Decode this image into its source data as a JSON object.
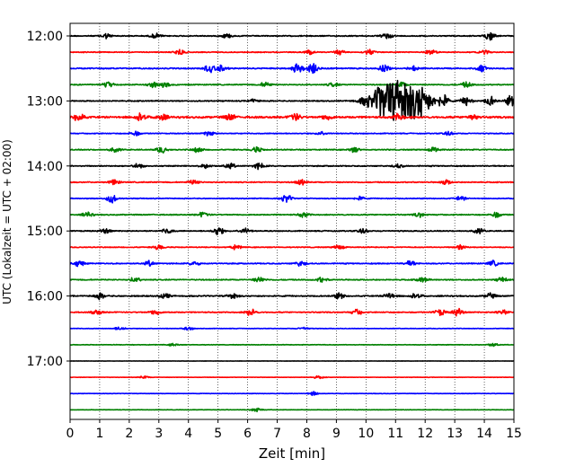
{
  "chart_data": {
    "type": "line",
    "title": "",
    "xlabel": "Zeit  [min]",
    "ylabel": "UTC (Lokalzeit = UTC + 02:00)",
    "xlim": [
      0,
      15
    ],
    "x_ticks": [
      0,
      1,
      2,
      3,
      4,
      5,
      6,
      7,
      8,
      9,
      10,
      11,
      12,
      13,
      14,
      15
    ],
    "x_tick_labels": [
      "0",
      "1",
      "2",
      "3",
      "4",
      "5",
      "6",
      "7",
      "8",
      "9",
      "10",
      "11",
      "12",
      "13",
      "14",
      "15"
    ],
    "y_ticks": [
      "12:00",
      "13:00",
      "14:00",
      "15:00",
      "16:00",
      "17:00"
    ],
    "y_tick_positions_hours": [
      12.0,
      13.0,
      14.0,
      15.0,
      16.0,
      17.0
    ],
    "x_grid": "vertical dotted lines at each minute",
    "trace_minutes": 15,
    "trace_colors": [
      "#000000",
      "#ff0000",
      "#0000ff",
      "#008000"
    ],
    "series": [
      {
        "start": "12:00",
        "amp": 0.6,
        "bursts": [
          [
            1.2,
            1.0
          ],
          [
            2.9,
            0.9
          ],
          [
            5.3,
            0.8
          ],
          [
            10.7,
            1.1
          ],
          [
            14.2,
            1.6
          ]
        ]
      },
      {
        "start": "12:15",
        "amp": 0.5,
        "bursts": [
          [
            3.7,
            1.2
          ],
          [
            8.1,
            1.0
          ],
          [
            9.1,
            1.0
          ],
          [
            10.1,
            0.9
          ],
          [
            12.2,
            1.0
          ],
          [
            14.0,
            0.8
          ]
        ]
      },
      {
        "start": "12:30",
        "amp": 0.7,
        "bursts": [
          [
            4.7,
            1.4
          ],
          [
            5.1,
            1.1
          ],
          [
            7.7,
            2.0
          ],
          [
            8.2,
            2.2
          ],
          [
            10.6,
            1.2
          ],
          [
            11.6,
            1.0
          ],
          [
            13.9,
            1.1
          ]
        ]
      },
      {
        "start": "12:45",
        "amp": 0.6,
        "bursts": [
          [
            1.3,
            1.0
          ],
          [
            2.8,
            1.0
          ],
          [
            3.2,
            1.0
          ],
          [
            6.6,
            0.9
          ],
          [
            8.9,
            0.8
          ],
          [
            11.2,
            1.0
          ],
          [
            13.4,
            1.0
          ]
        ]
      },
      {
        "start": "13:00",
        "amp": 0.6,
        "bursts": [
          [
            6.2,
            0.6
          ],
          [
            10.0,
            1.5
          ],
          [
            10.5,
            2.8
          ],
          [
            11.0,
            4.2
          ],
          [
            11.4,
            4.8
          ],
          [
            11.9,
            3.0
          ],
          [
            12.6,
            2.1
          ],
          [
            13.4,
            1.8
          ],
          [
            14.2,
            1.8
          ],
          [
            14.9,
            2.0
          ]
        ]
      },
      {
        "start": "13:15",
        "amp": 1.1,
        "bursts": [
          [
            0.3,
            1.8
          ],
          [
            2.4,
            1.4
          ],
          [
            3.1,
            1.2
          ],
          [
            5.4,
            1.2
          ],
          [
            7.6,
            1.3
          ],
          [
            8.7,
            1.0
          ],
          [
            11.1,
            1.2
          ],
          [
            13.6,
            1.0
          ]
        ]
      },
      {
        "start": "13:30",
        "amp": 0.5,
        "bursts": [
          [
            2.2,
            0.9
          ],
          [
            4.7,
            0.9
          ],
          [
            8.5,
            0.7
          ],
          [
            12.8,
            0.7
          ]
        ]
      },
      {
        "start": "13:45",
        "amp": 0.6,
        "bursts": [
          [
            1.5,
            0.9
          ],
          [
            3.1,
            1.1
          ],
          [
            4.3,
            1.0
          ],
          [
            6.3,
            1.0
          ],
          [
            9.6,
            0.9
          ],
          [
            12.3,
            0.9
          ]
        ]
      },
      {
        "start": "14:00",
        "amp": 0.6,
        "bursts": [
          [
            2.3,
            1.0
          ],
          [
            4.6,
            0.8
          ],
          [
            5.4,
            1.0
          ],
          [
            6.4,
            1.1
          ],
          [
            11.1,
            0.8
          ]
        ]
      },
      {
        "start": "14:15",
        "amp": 0.6,
        "bursts": [
          [
            1.5,
            0.9
          ],
          [
            4.2,
            0.9
          ],
          [
            7.8,
            1.0
          ],
          [
            12.7,
            0.9
          ]
        ]
      },
      {
        "start": "14:30",
        "amp": 0.5,
        "bursts": [
          [
            1.4,
            1.6
          ],
          [
            7.3,
            1.5
          ],
          [
            9.8,
            0.7
          ],
          [
            13.2,
            0.8
          ]
        ]
      },
      {
        "start": "14:45",
        "amp": 0.6,
        "bursts": [
          [
            0.6,
            0.9
          ],
          [
            4.5,
            0.9
          ],
          [
            7.9,
            0.9
          ],
          [
            11.8,
            0.8
          ],
          [
            14.4,
            1.0
          ]
        ]
      },
      {
        "start": "15:00",
        "amp": 0.6,
        "bursts": [
          [
            1.2,
            0.9
          ],
          [
            3.3,
            0.9
          ],
          [
            5.0,
            1.6
          ],
          [
            5.9,
            1.1
          ],
          [
            9.9,
            0.8
          ],
          [
            13.8,
            0.9
          ]
        ]
      },
      {
        "start": "15:15",
        "amp": 0.5,
        "bursts": [
          [
            3.0,
            0.9
          ],
          [
            5.6,
            0.8
          ],
          [
            9.1,
            0.8
          ],
          [
            13.2,
            0.9
          ]
        ]
      },
      {
        "start": "15:30",
        "amp": 0.6,
        "bursts": [
          [
            0.3,
            1.1
          ],
          [
            2.7,
            1.0
          ],
          [
            4.2,
            0.8
          ],
          [
            7.8,
            0.9
          ],
          [
            11.5,
            1.0
          ],
          [
            14.3,
            1.0
          ]
        ]
      },
      {
        "start": "15:45",
        "amp": 0.6,
        "bursts": [
          [
            2.2,
            0.9
          ],
          [
            6.4,
            1.1
          ],
          [
            8.5,
            0.9
          ],
          [
            11.9,
            0.9
          ],
          [
            14.6,
            0.9
          ]
        ]
      },
      {
        "start": "16:00",
        "amp": 0.7,
        "bursts": [
          [
            1.0,
            1.1
          ],
          [
            3.2,
            1.0
          ],
          [
            5.5,
            1.0
          ],
          [
            9.1,
            1.0
          ],
          [
            10.8,
            1.2
          ],
          [
            11.7,
            1.0
          ],
          [
            14.2,
            1.0
          ]
        ]
      },
      {
        "start": "16:15",
        "amp": 0.6,
        "bursts": [
          [
            0.9,
            1.0
          ],
          [
            2.9,
            1.0
          ],
          [
            6.1,
            1.3
          ],
          [
            9.7,
            1.0
          ],
          [
            12.5,
            1.2
          ],
          [
            13.1,
            1.4
          ],
          [
            14.6,
            1.0
          ]
        ]
      },
      {
        "start": "16:30",
        "amp": 0.3,
        "bursts": [
          [
            1.7,
            0.7
          ],
          [
            4.0,
            0.6
          ],
          [
            7.9,
            0.5
          ]
        ]
      },
      {
        "start": "16:45",
        "amp": 0.3,
        "bursts": [
          [
            3.5,
            0.5
          ],
          [
            14.3,
            0.6
          ]
        ]
      },
      {
        "start": "17:00",
        "amp": 0.15,
        "bursts": []
      },
      {
        "start": "17:15",
        "amp": 0.2,
        "bursts": [
          [
            2.5,
            0.5
          ],
          [
            8.4,
            0.5
          ]
        ]
      },
      {
        "start": "17:30",
        "amp": 0.25,
        "bursts": [
          [
            8.2,
            0.7
          ]
        ]
      },
      {
        "start": "17:45",
        "amp": 0.25,
        "bursts": [
          [
            6.3,
            0.8
          ]
        ]
      }
    ]
  }
}
